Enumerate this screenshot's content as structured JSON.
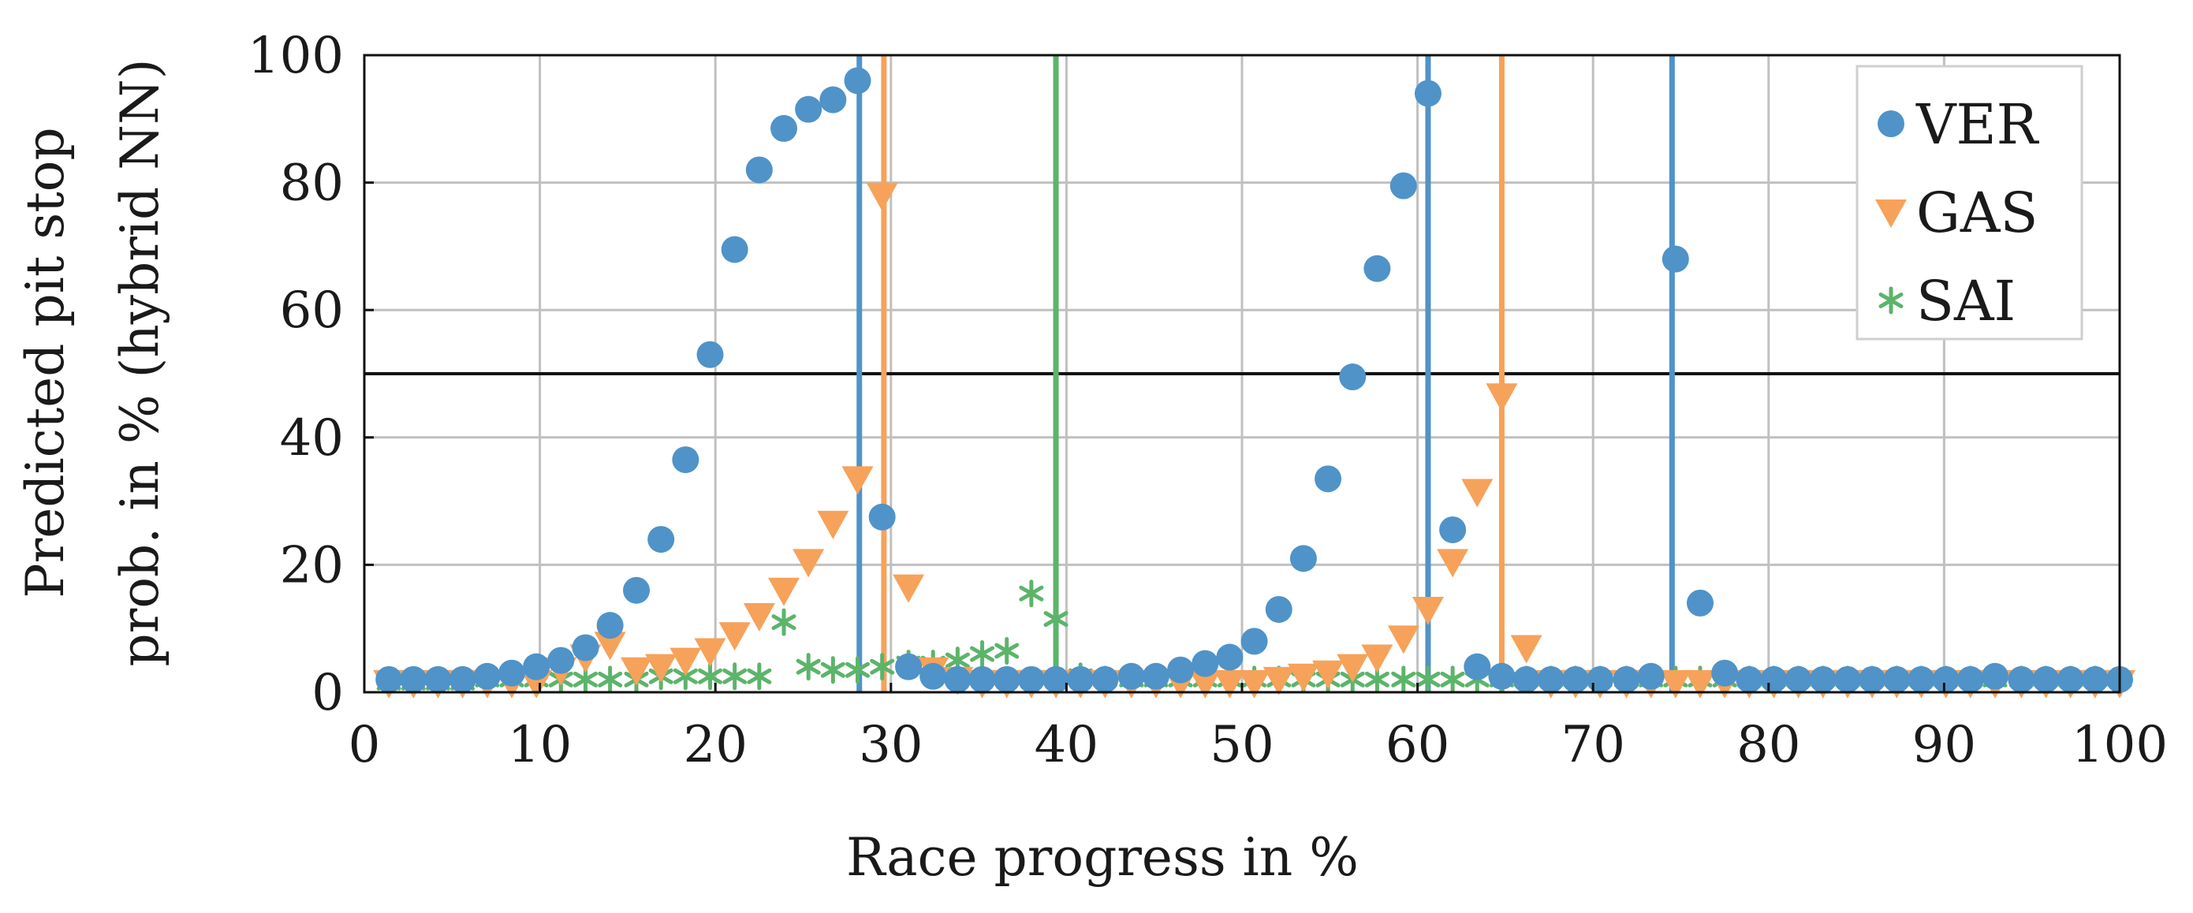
{
  "chart_data": {
    "type": "scatter",
    "xlabel": "Race progress in %",
    "ylabel_lines": [
      "Predicted pit stop",
      "prob. in % (hybrid NN)"
    ],
    "xlim": [
      0,
      100
    ],
    "ylim": [
      0,
      100
    ],
    "x_ticks": [
      0,
      10,
      20,
      30,
      40,
      50,
      60,
      70,
      80,
      90,
      100
    ],
    "y_ticks": [
      0,
      20,
      40,
      60,
      80,
      100
    ],
    "grid": true,
    "threshold": 50,
    "legend_position": "top-right",
    "colors": {
      "VER": "#4f93c8",
      "GAS": "#f6a25a",
      "SAI": "#5cb46a",
      "threshold": "#111111",
      "grid": "#c0c0c0"
    },
    "series": [
      {
        "name": "VER",
        "marker": "circle",
        "points": [
          [
            1.4,
            2
          ],
          [
            2.8,
            2
          ],
          [
            4.2,
            2
          ],
          [
            5.6,
            2
          ],
          [
            7,
            2.5
          ],
          [
            8.4,
            3
          ],
          [
            9.8,
            4
          ],
          [
            11.2,
            5
          ],
          [
            12.6,
            7
          ],
          [
            14,
            10.5
          ],
          [
            15.5,
            16
          ],
          [
            16.9,
            24
          ],
          [
            18.3,
            36.5
          ],
          [
            19.7,
            53
          ],
          [
            21.1,
            69.5
          ],
          [
            22.5,
            82
          ],
          [
            23.9,
            88.5
          ],
          [
            25.3,
            91.5
          ],
          [
            26.7,
            93
          ],
          [
            28.1,
            96
          ],
          [
            29.5,
            27.5
          ],
          [
            31,
            4
          ],
          [
            32.4,
            2.5
          ],
          [
            33.8,
            2
          ],
          [
            35.2,
            2
          ],
          [
            36.6,
            2
          ],
          [
            38,
            2
          ],
          [
            39.4,
            2
          ],
          [
            40.8,
            2
          ],
          [
            42.2,
            2
          ],
          [
            43.7,
            2.5
          ],
          [
            45.1,
            2.5
          ],
          [
            46.5,
            3.5
          ],
          [
            47.9,
            4.5
          ],
          [
            49.3,
            5.5
          ],
          [
            50.7,
            8
          ],
          [
            52.1,
            13
          ],
          [
            53.5,
            21
          ],
          [
            54.9,
            33.5
          ],
          [
            56.3,
            49.5
          ],
          [
            57.7,
            66.5
          ],
          [
            59.2,
            79.5
          ],
          [
            60.6,
            94
          ],
          [
            62,
            25.5
          ],
          [
            63.4,
            4
          ],
          [
            64.8,
            2.5
          ],
          [
            66.2,
            2
          ],
          [
            67.6,
            2
          ],
          [
            69,
            2
          ],
          [
            70.4,
            2
          ],
          [
            71.9,
            2
          ],
          [
            73.3,
            2.5
          ],
          [
            74.7,
            68
          ],
          [
            76.1,
            14
          ],
          [
            77.5,
            3
          ],
          [
            78.9,
            2
          ],
          [
            80.3,
            2
          ],
          [
            81.7,
            2
          ],
          [
            83.1,
            2
          ],
          [
            84.5,
            2
          ],
          [
            85.9,
            2
          ],
          [
            87.3,
            2
          ],
          [
            88.7,
            2
          ],
          [
            90.1,
            2
          ],
          [
            91.5,
            2
          ],
          [
            92.9,
            2.5
          ],
          [
            94.4,
            2
          ],
          [
            95.8,
            2
          ],
          [
            97.2,
            2
          ],
          [
            98.6,
            2
          ],
          [
            100,
            2
          ]
        ]
      },
      {
        "name": "GAS",
        "marker": "triangle-down",
        "points": [
          [
            1.4,
            1.5
          ],
          [
            2.8,
            1.5
          ],
          [
            4.2,
            1.5
          ],
          [
            5.6,
            1.5
          ],
          [
            7,
            1.5
          ],
          [
            8.4,
            1.5
          ],
          [
            9.8,
            1.5
          ],
          [
            11.2,
            3.5
          ],
          [
            12.6,
            5.5
          ],
          [
            14,
            7.5
          ],
          [
            15.5,
            3.5
          ],
          [
            16.9,
            4
          ],
          [
            18.3,
            5
          ],
          [
            19.7,
            6.5
          ],
          [
            21.1,
            9
          ],
          [
            22.5,
            12
          ],
          [
            23.9,
            16
          ],
          [
            25.3,
            20.5
          ],
          [
            26.7,
            26.5
          ],
          [
            28.1,
            33.5
          ],
          [
            29.5,
            78
          ],
          [
            31,
            16.5
          ],
          [
            32.4,
            3.5
          ],
          [
            33.8,
            2
          ],
          [
            35.2,
            1.5
          ],
          [
            36.6,
            1.5
          ],
          [
            38,
            1.5
          ],
          [
            39.4,
            1.5
          ],
          [
            40.8,
            1.5
          ],
          [
            42.2,
            1.5
          ],
          [
            43.7,
            1.5
          ],
          [
            45.1,
            1.5
          ],
          [
            46.5,
            1.5
          ],
          [
            47.9,
            1.5
          ],
          [
            49.3,
            1.5
          ],
          [
            50.7,
            1.5
          ],
          [
            52.1,
            2
          ],
          [
            53.5,
            2.5
          ],
          [
            54.9,
            3
          ],
          [
            56.3,
            4
          ],
          [
            57.7,
            5.5
          ],
          [
            59.2,
            8.5
          ],
          [
            60.6,
            13
          ],
          [
            62,
            20.5
          ],
          [
            63.4,
            31.5
          ],
          [
            64.8,
            46.5
          ],
          [
            66.2,
            7
          ],
          [
            67.6,
            1.5
          ],
          [
            69,
            1.5
          ],
          [
            70.4,
            1.5
          ],
          [
            71.9,
            1.5
          ],
          [
            73.3,
            1.5
          ],
          [
            74.7,
            1.5
          ],
          [
            76.1,
            1.5
          ],
          [
            77.5,
            1.5
          ],
          [
            78.9,
            1.5
          ],
          [
            80.3,
            1.5
          ],
          [
            81.7,
            1.5
          ],
          [
            83.1,
            1.5
          ],
          [
            84.5,
            1.5
          ],
          [
            85.9,
            1.5
          ],
          [
            87.3,
            1.5
          ],
          [
            88.7,
            1.5
          ],
          [
            90.1,
            1.5
          ],
          [
            91.5,
            1.5
          ],
          [
            92.9,
            1.5
          ],
          [
            94.4,
            1.5
          ],
          [
            95.8,
            1.5
          ],
          [
            97.2,
            1.5
          ],
          [
            98.6,
            1.5
          ],
          [
            100,
            1.5
          ]
        ]
      },
      {
        "name": "SAI",
        "marker": "asterisk",
        "points": [
          [
            1.4,
            1.5
          ],
          [
            2.8,
            1.5
          ],
          [
            4.2,
            1.5
          ],
          [
            5.6,
            1.5
          ],
          [
            7,
            2
          ],
          [
            8.4,
            2
          ],
          [
            9.8,
            2
          ],
          [
            11.2,
            2
          ],
          [
            12.6,
            2
          ],
          [
            14,
            2
          ],
          [
            15.5,
            2
          ],
          [
            16.9,
            2.5
          ],
          [
            18.3,
            2.5
          ],
          [
            19.7,
            2.5
          ],
          [
            21.1,
            2.5
          ],
          [
            22.5,
            2.5
          ],
          [
            23.9,
            11
          ],
          [
            25.3,
            4
          ],
          [
            26.7,
            3.5
          ],
          [
            28.1,
            3.5
          ],
          [
            29.5,
            4
          ],
          [
            31,
            4.5
          ],
          [
            32.4,
            4.5
          ],
          [
            33.8,
            5
          ],
          [
            35.2,
            6
          ],
          [
            36.6,
            6.5
          ],
          [
            38,
            15.5
          ],
          [
            39.4,
            11.5
          ],
          [
            40.8,
            2.5
          ],
          [
            42.2,
            2
          ],
          [
            43.7,
            2
          ],
          [
            45.1,
            2
          ],
          [
            46.5,
            2
          ],
          [
            47.9,
            2
          ],
          [
            49.3,
            2
          ],
          [
            50.7,
            2
          ],
          [
            52.1,
            2
          ],
          [
            53.5,
            2
          ],
          [
            54.9,
            2
          ],
          [
            56.3,
            2
          ],
          [
            57.7,
            2
          ],
          [
            59.2,
            2
          ],
          [
            60.6,
            2
          ],
          [
            62,
            2
          ],
          [
            63.4,
            2
          ],
          [
            64.8,
            2
          ],
          [
            66.2,
            2
          ],
          [
            67.6,
            2
          ],
          [
            69,
            2
          ],
          [
            70.4,
            2
          ],
          [
            71.9,
            2
          ],
          [
            73.3,
            2
          ],
          [
            74.7,
            2
          ],
          [
            76.1,
            2
          ],
          [
            77.5,
            2
          ],
          [
            78.9,
            2
          ],
          [
            80.3,
            2
          ],
          [
            81.7,
            2
          ],
          [
            83.1,
            2
          ],
          [
            84.5,
            2
          ],
          [
            85.9,
            2
          ],
          [
            87.3,
            2
          ],
          [
            88.7,
            2
          ],
          [
            90.1,
            2
          ],
          [
            91.5,
            2
          ],
          [
            92.9,
            2
          ],
          [
            94.4,
            2
          ],
          [
            95.8,
            2
          ],
          [
            97.2,
            2
          ],
          [
            98.6,
            2
          ],
          [
            100,
            2
          ]
        ]
      }
    ],
    "vertical_lines": [
      {
        "series": "VER",
        "x": 28.2
      },
      {
        "series": "GAS",
        "x": 29.6
      },
      {
        "series": "SAI",
        "x": 39.4
      },
      {
        "series": "VER",
        "x": 60.6
      },
      {
        "series": "GAS",
        "x": 64.8
      },
      {
        "series": "VER",
        "x": 74.5
      }
    ],
    "legend": [
      {
        "name": "VER",
        "label": "VER"
      },
      {
        "name": "GAS",
        "label": "GAS"
      },
      {
        "name": "SAI",
        "label": "SAI"
      }
    ]
  }
}
